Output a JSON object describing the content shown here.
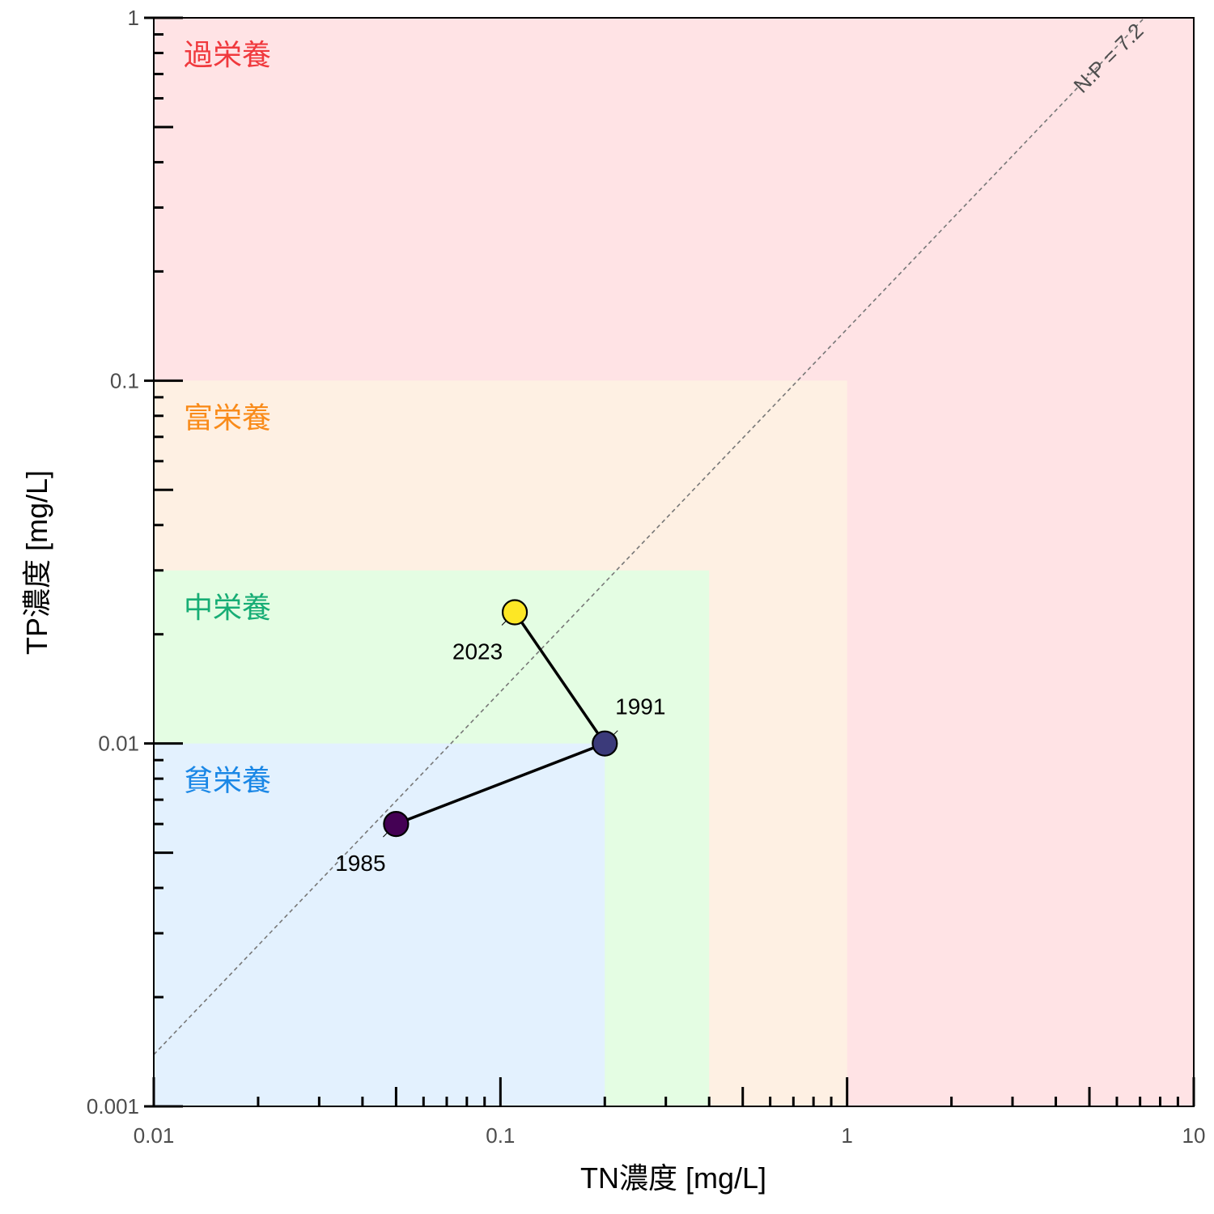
{
  "chart_data": {
    "type": "scatter",
    "title": "",
    "xlabel": "TN濃度 [mg/L]",
    "ylabel": "TP濃度 [mg/L]",
    "x_scale": "log",
    "y_scale": "log",
    "xlim": [
      0.01,
      10
    ],
    "ylim": [
      0.001,
      1
    ],
    "x_ticks": [
      0.01,
      0.1,
      1,
      10
    ],
    "x_tick_labels": [
      "0.01",
      "0.1",
      "1",
      "10"
    ],
    "y_ticks": [
      0.001,
      0.01,
      0.1,
      1
    ],
    "y_tick_labels": [
      "0.001",
      "0.01",
      "0.1",
      "1"
    ],
    "grid": false,
    "zones": [
      {
        "label": "過栄養",
        "tn_max": 10,
        "tp_max": 1,
        "fill": "#ffe3e5",
        "text_color": "#f0393d"
      },
      {
        "label": "富栄養",
        "tn_max": 1,
        "tp_max": 0.1,
        "fill": "#fef0e3",
        "text_color": "#f98b1a"
      },
      {
        "label": "中栄養",
        "tn_max": 0.4,
        "tp_max": 0.03,
        "fill": "#e4fde3",
        "text_color": "#17ad75"
      },
      {
        "label": "貧栄養",
        "tn_max": 0.2,
        "tp_max": 0.01,
        "fill": "#e3f1fe",
        "text_color": "#1a87e6"
      }
    ],
    "points": [
      {
        "label": "1985",
        "tn": 0.05,
        "tp": 0.006,
        "color": "#440154"
      },
      {
        "label": "1991",
        "tn": 0.2,
        "tp": 0.01,
        "color": "#3b3a7a"
      },
      {
        "label": "2023",
        "tn": 0.11,
        "tp": 0.023,
        "color": "#fde725"
      }
    ],
    "ratio_line": {
      "label": "N:P = 7.2",
      "ratio": 7.2,
      "color": "#777777"
    }
  }
}
